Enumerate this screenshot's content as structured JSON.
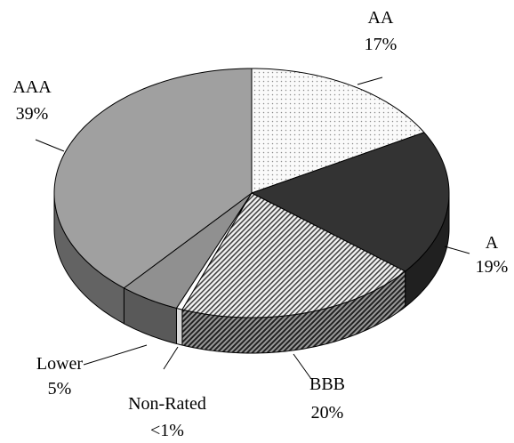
{
  "chart_data": {
    "type": "pie",
    "style": "3d",
    "title": "",
    "slices": [
      {
        "label": "AA",
        "value_label": "17%",
        "value": 17,
        "color": "#f2f2f2",
        "pattern": "dots"
      },
      {
        "label": "A",
        "value_label": "19%",
        "value": 19,
        "color": "#333333",
        "pattern": "solid"
      },
      {
        "label": "BBB",
        "value_label": "20%",
        "value": 20,
        "color": "#f0f0f0",
        "pattern": "diagonal-hatch"
      },
      {
        "label": "Non-Rated",
        "value_label": "<1%",
        "value": 0.5,
        "color": "#ffffff",
        "pattern": "solid"
      },
      {
        "label": "Lower",
        "value_label": "5%",
        "value": 5,
        "color": "#909090",
        "pattern": "solid"
      },
      {
        "label": "AAA",
        "value_label": "39%",
        "value": 39,
        "color": "#a0a0a0",
        "pattern": "solid"
      }
    ]
  }
}
